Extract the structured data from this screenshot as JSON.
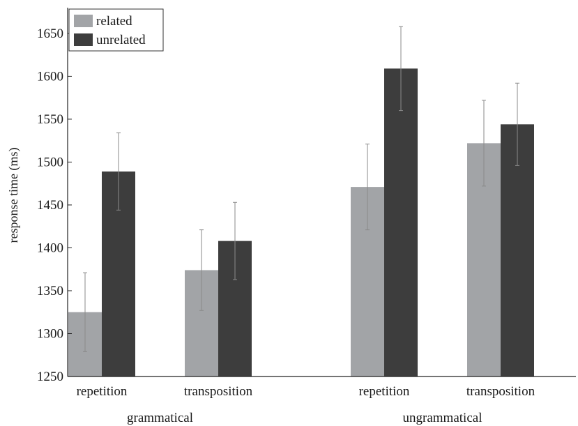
{
  "chart_data": {
    "type": "bar",
    "ylabel": "response time (ms)",
    "ylim": [
      1250,
      1680
    ],
    "yticks": [
      1250,
      1300,
      1350,
      1400,
      1450,
      1500,
      1550,
      1600,
      1650
    ],
    "groups": [
      {
        "label": "grammatical",
        "categories": [
          "repetition",
          "transposition"
        ]
      },
      {
        "label": "ungrammatical",
        "categories": [
          "repetition",
          "transposition"
        ]
      }
    ],
    "categories": [
      "repetition",
      "transposition",
      "repetition",
      "transposition"
    ],
    "series": [
      {
        "name": "related",
        "color": "#a2a4a7",
        "values": [
          1325,
          1374,
          1471,
          1522
        ],
        "errors": [
          46,
          47,
          50,
          50
        ]
      },
      {
        "name": "unrelated",
        "color": "#3d3d3d",
        "values": [
          1489,
          1408,
          1609,
          1544
        ],
        "errors": [
          45,
          45,
          49,
          48
        ]
      }
    ],
    "legend": "top-left",
    "grid": false
  }
}
